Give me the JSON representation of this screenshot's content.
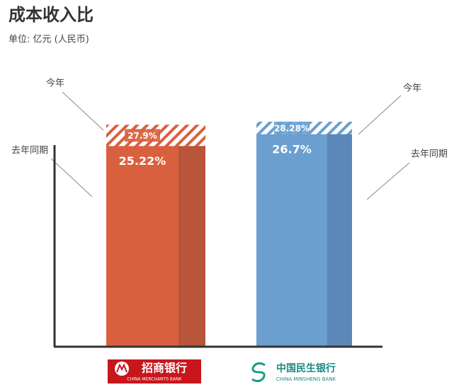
{
  "chart_data": {
    "type": "bar",
    "title": "成本收入比",
    "subtitle": "单位: 亿元 (人民币)",
    "categories": [
      "招商银行",
      "中国民生银行"
    ],
    "category_subtitles": [
      "CHINA MERCHANTS BANK",
      "CHINA MINSHENG BANK"
    ],
    "colors": [
      "#d9603f",
      "#6a9fd0"
    ],
    "series": [
      {
        "name": "去年同期",
        "values": [
          25.22,
          26.7
        ],
        "value_labels": [
          "25.22%",
          "26.7%"
        ]
      },
      {
        "name": "今年",
        "values": [
          27.9,
          28.28
        ],
        "value_labels": [
          "27.9%",
          "28.28%"
        ]
      }
    ]
  }
}
